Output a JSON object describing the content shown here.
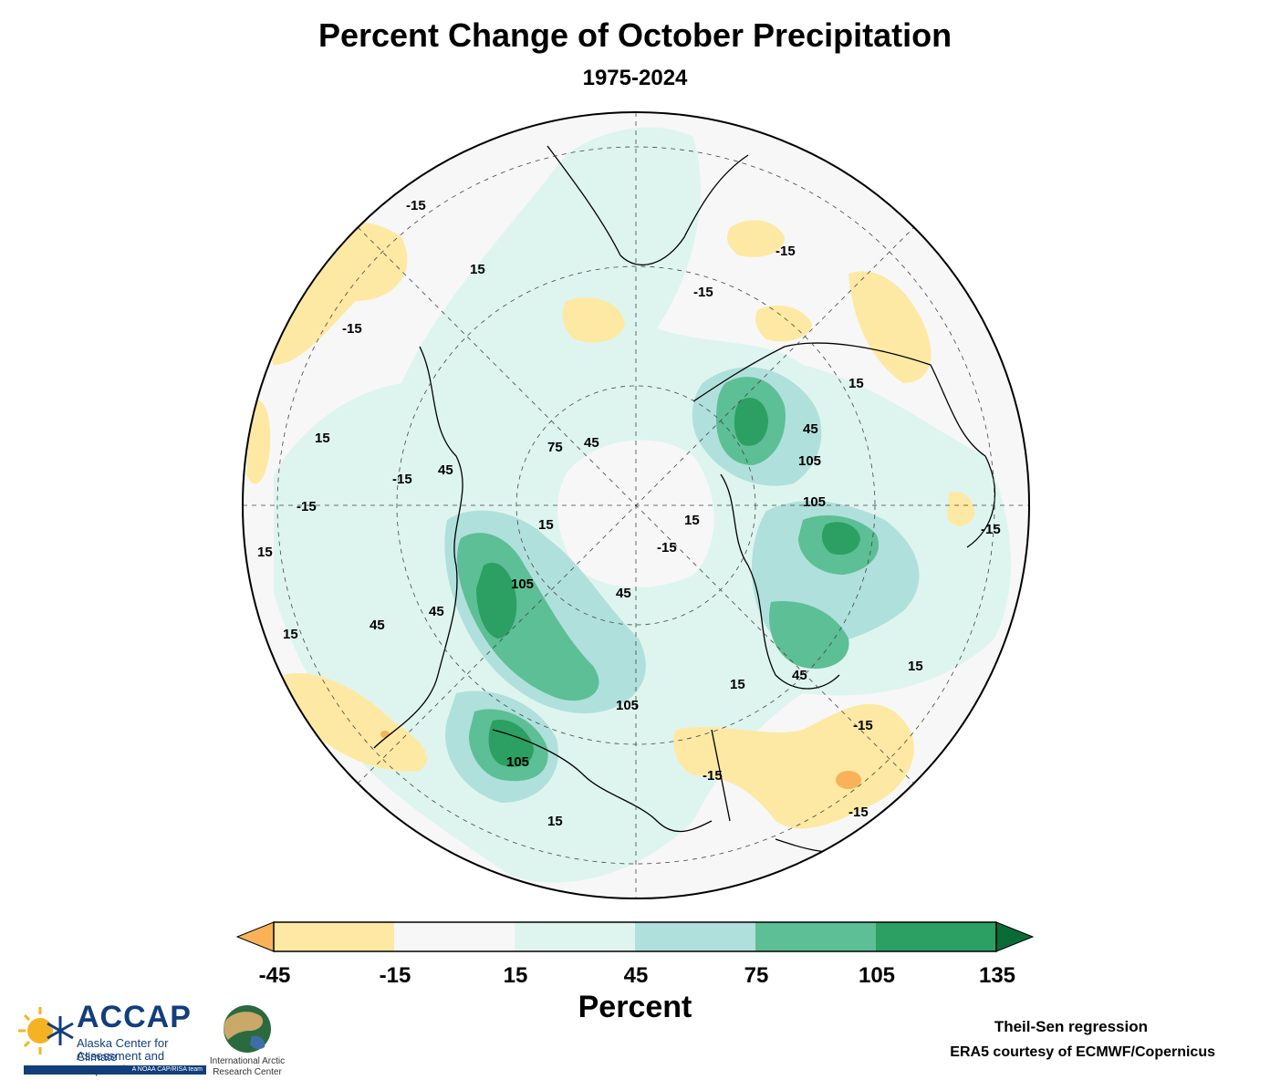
{
  "header": {
    "title": "Percent Change of October Precipitation",
    "subtitle": "1975-2024"
  },
  "colorbar": {
    "title": "Percent",
    "ticks": [
      "-45",
      "-15",
      "15",
      "45",
      "75",
      "105",
      "135"
    ],
    "colors": [
      "#fde9a3",
      "#f7f7f7",
      "#def5ef",
      "#b0e0dc",
      "#5dbf95",
      "#2ca062"
    ],
    "under_color": "#f9b257",
    "over_color": "#0a6b36"
  },
  "contour_labels": [
    "15",
    "45",
    "75",
    "105",
    "-15"
  ],
  "footer": {
    "method": "Theil-Sen regression",
    "source": "ERA5 courtesy of ECMWF/Copernicus"
  },
  "logos": {
    "accap_name": "ACCAP",
    "accap_line1": "Alaska Center for Climate",
    "accap_line2": "Assessment and Preparedness",
    "accap_tag": "A NOAA CAP/RISA team",
    "iarc_line1": "International Arctic",
    "iarc_line2": "Research Center"
  }
}
